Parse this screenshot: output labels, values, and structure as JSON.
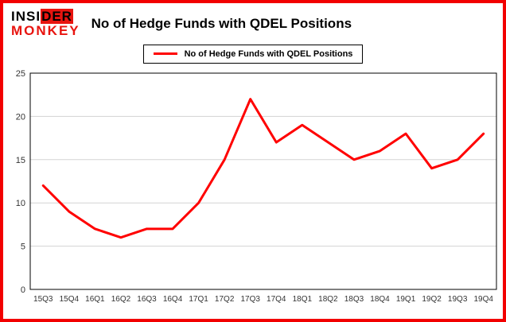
{
  "brand": {
    "logo_part1": "INSI",
    "logo_part2": "DER",
    "logo_line2": "MONKEY",
    "logo_red": "#e8140f",
    "frame_border_color": "#f20000"
  },
  "header": {
    "title": "No of Hedge Funds with QDEL Positions"
  },
  "legend": {
    "label": "No of Hedge Funds with QDEL Positions",
    "line_color": "#ff0000"
  },
  "chart_data": {
    "type": "line",
    "title": "No of Hedge Funds with QDEL Positions",
    "categories": [
      "15Q3",
      "15Q4",
      "16Q1",
      "16Q2",
      "16Q3",
      "16Q4",
      "17Q1",
      "17Q2",
      "17Q3",
      "17Q4",
      "18Q1",
      "18Q2",
      "18Q3",
      "18Q4",
      "19Q1",
      "19Q2",
      "19Q3",
      "19Q4"
    ],
    "series": [
      {
        "name": "No of Hedge Funds with QDEL Positions",
        "values": [
          12,
          9,
          7,
          6,
          7,
          7,
          10,
          15,
          22,
          17,
          19,
          17,
          15,
          16,
          18,
          14,
          15,
          18
        ]
      }
    ],
    "xlabel": "",
    "ylabel": "",
    "ylim": [
      0,
      25
    ],
    "yticks": [
      0,
      5,
      10,
      15,
      20,
      25
    ],
    "grid": true,
    "line_color": "#ff0000",
    "grid_color": "#d3d3d3",
    "axis_color": "#000000",
    "tick_label_color": "#333333",
    "legend_position": "top"
  }
}
